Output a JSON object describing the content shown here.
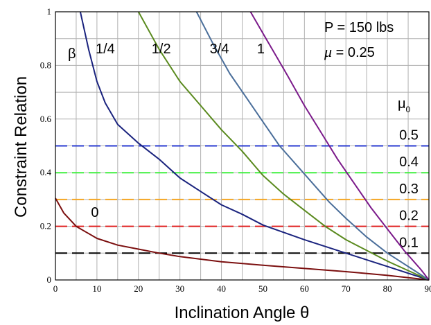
{
  "chart_data": {
    "type": "line",
    "xlabel": "Inclination Angle θ",
    "ylabel": "Constraint Relation",
    "xlim": [
      0,
      90
    ],
    "ylim": [
      0,
      1
    ],
    "x_ticks": [
      0,
      10,
      20,
      30,
      40,
      50,
      60,
      70,
      80,
      90
    ],
    "y_ticks": [
      0,
      0.2,
      0.4,
      0.6,
      0.8,
      1
    ],
    "y_tick_labels": [
      "0",
      "0.2",
      "0.4",
      "0.6",
      "0.8",
      "1"
    ],
    "grid": true,
    "annotations": {
      "P": "P = 150 lbs",
      "mu_symbol": "μ",
      "mu_value": " = 0.25",
      "beta": "β",
      "mu0_symbol": "μ",
      "mu0_sub": "0"
    },
    "colors": {
      "grid": "#b0b0b0",
      "axis": "#000000"
    },
    "curves": [
      {
        "label": "0",
        "color": "#7b0f0f",
        "points": [
          [
            0,
            0.305
          ],
          [
            2,
            0.25
          ],
          [
            5,
            0.2
          ],
          [
            10,
            0.155
          ],
          [
            15,
            0.13
          ],
          [
            20,
            0.115
          ],
          [
            25,
            0.1
          ],
          [
            30,
            0.087
          ],
          [
            40,
            0.068
          ],
          [
            50,
            0.055
          ],
          [
            60,
            0.043
          ],
          [
            70,
            0.031
          ],
          [
            80,
            0.017
          ],
          [
            90,
            0
          ]
        ]
      },
      {
        "label": "1/4",
        "color": "#1a237e",
        "points": [
          [
            6,
            1
          ],
          [
            8,
            0.86
          ],
          [
            10,
            0.74
          ],
          [
            12,
            0.66
          ],
          [
            15,
            0.58
          ],
          [
            20,
            0.51
          ],
          [
            25,
            0.45
          ],
          [
            30,
            0.38
          ],
          [
            35,
            0.33
          ],
          [
            40,
            0.28
          ],
          [
            45,
            0.245
          ],
          [
            50,
            0.205
          ],
          [
            60,
            0.15
          ],
          [
            70,
            0.1
          ],
          [
            80,
            0.05
          ],
          [
            90,
            0
          ]
        ]
      },
      {
        "label": "1/2",
        "color": "#5a8a1e",
        "points": [
          [
            20,
            1
          ],
          [
            25,
            0.86
          ],
          [
            30,
            0.74
          ],
          [
            35,
            0.65
          ],
          [
            40,
            0.56
          ],
          [
            45,
            0.48
          ],
          [
            50,
            0.39
          ],
          [
            55,
            0.32
          ],
          [
            60,
            0.26
          ],
          [
            65,
            0.2
          ],
          [
            70,
            0.15
          ],
          [
            75,
            0.11
          ],
          [
            80,
            0.07
          ],
          [
            85,
            0.035
          ],
          [
            90,
            0
          ]
        ]
      },
      {
        "label": "3/4",
        "color": "#4a6e9a",
        "points": [
          [
            34,
            1
          ],
          [
            38,
            0.88
          ],
          [
            42,
            0.77
          ],
          [
            46,
            0.68
          ],
          [
            50,
            0.59
          ],
          [
            54,
            0.5
          ],
          [
            58,
            0.43
          ],
          [
            62,
            0.36
          ],
          [
            66,
            0.29
          ],
          [
            70,
            0.23
          ],
          [
            75,
            0.16
          ],
          [
            80,
            0.1
          ],
          [
            85,
            0.05
          ],
          [
            90,
            0
          ]
        ]
      },
      {
        "label": "1",
        "color": "#7b1a8a",
        "points": [
          [
            47,
            1
          ],
          [
            50,
            0.92
          ],
          [
            53,
            0.84
          ],
          [
            56,
            0.76
          ],
          [
            60,
            0.65
          ],
          [
            64,
            0.55
          ],
          [
            68,
            0.45
          ],
          [
            72,
            0.36
          ],
          [
            76,
            0.27
          ],
          [
            80,
            0.19
          ],
          [
            84,
            0.11
          ],
          [
            88,
            0.04
          ],
          [
            90,
            0
          ]
        ]
      }
    ],
    "curve_label_positions": [
      {
        "label": "1/4",
        "x": 12,
        "y": 0.845
      },
      {
        "label": "1/2",
        "x": 25.5,
        "y": 0.845
      },
      {
        "label": "3/4",
        "x": 39.5,
        "y": 0.845
      },
      {
        "label": "1",
        "x": 49.5,
        "y": 0.845
      },
      {
        "label": "0",
        "x": 9.5,
        "y": 0.235
      }
    ],
    "mu0_lines": [
      {
        "label": "0.5",
        "value": 0.5,
        "color": "#2a3bd0"
      },
      {
        "label": "0.4",
        "value": 0.4,
        "color": "#3ff03f"
      },
      {
        "label": "0.3",
        "value": 0.3,
        "color": "#f5a623"
      },
      {
        "label": "0.2",
        "value": 0.2,
        "color": "#e02020"
      },
      {
        "label": "0.1",
        "value": 0.1,
        "color": "#000000"
      }
    ]
  }
}
